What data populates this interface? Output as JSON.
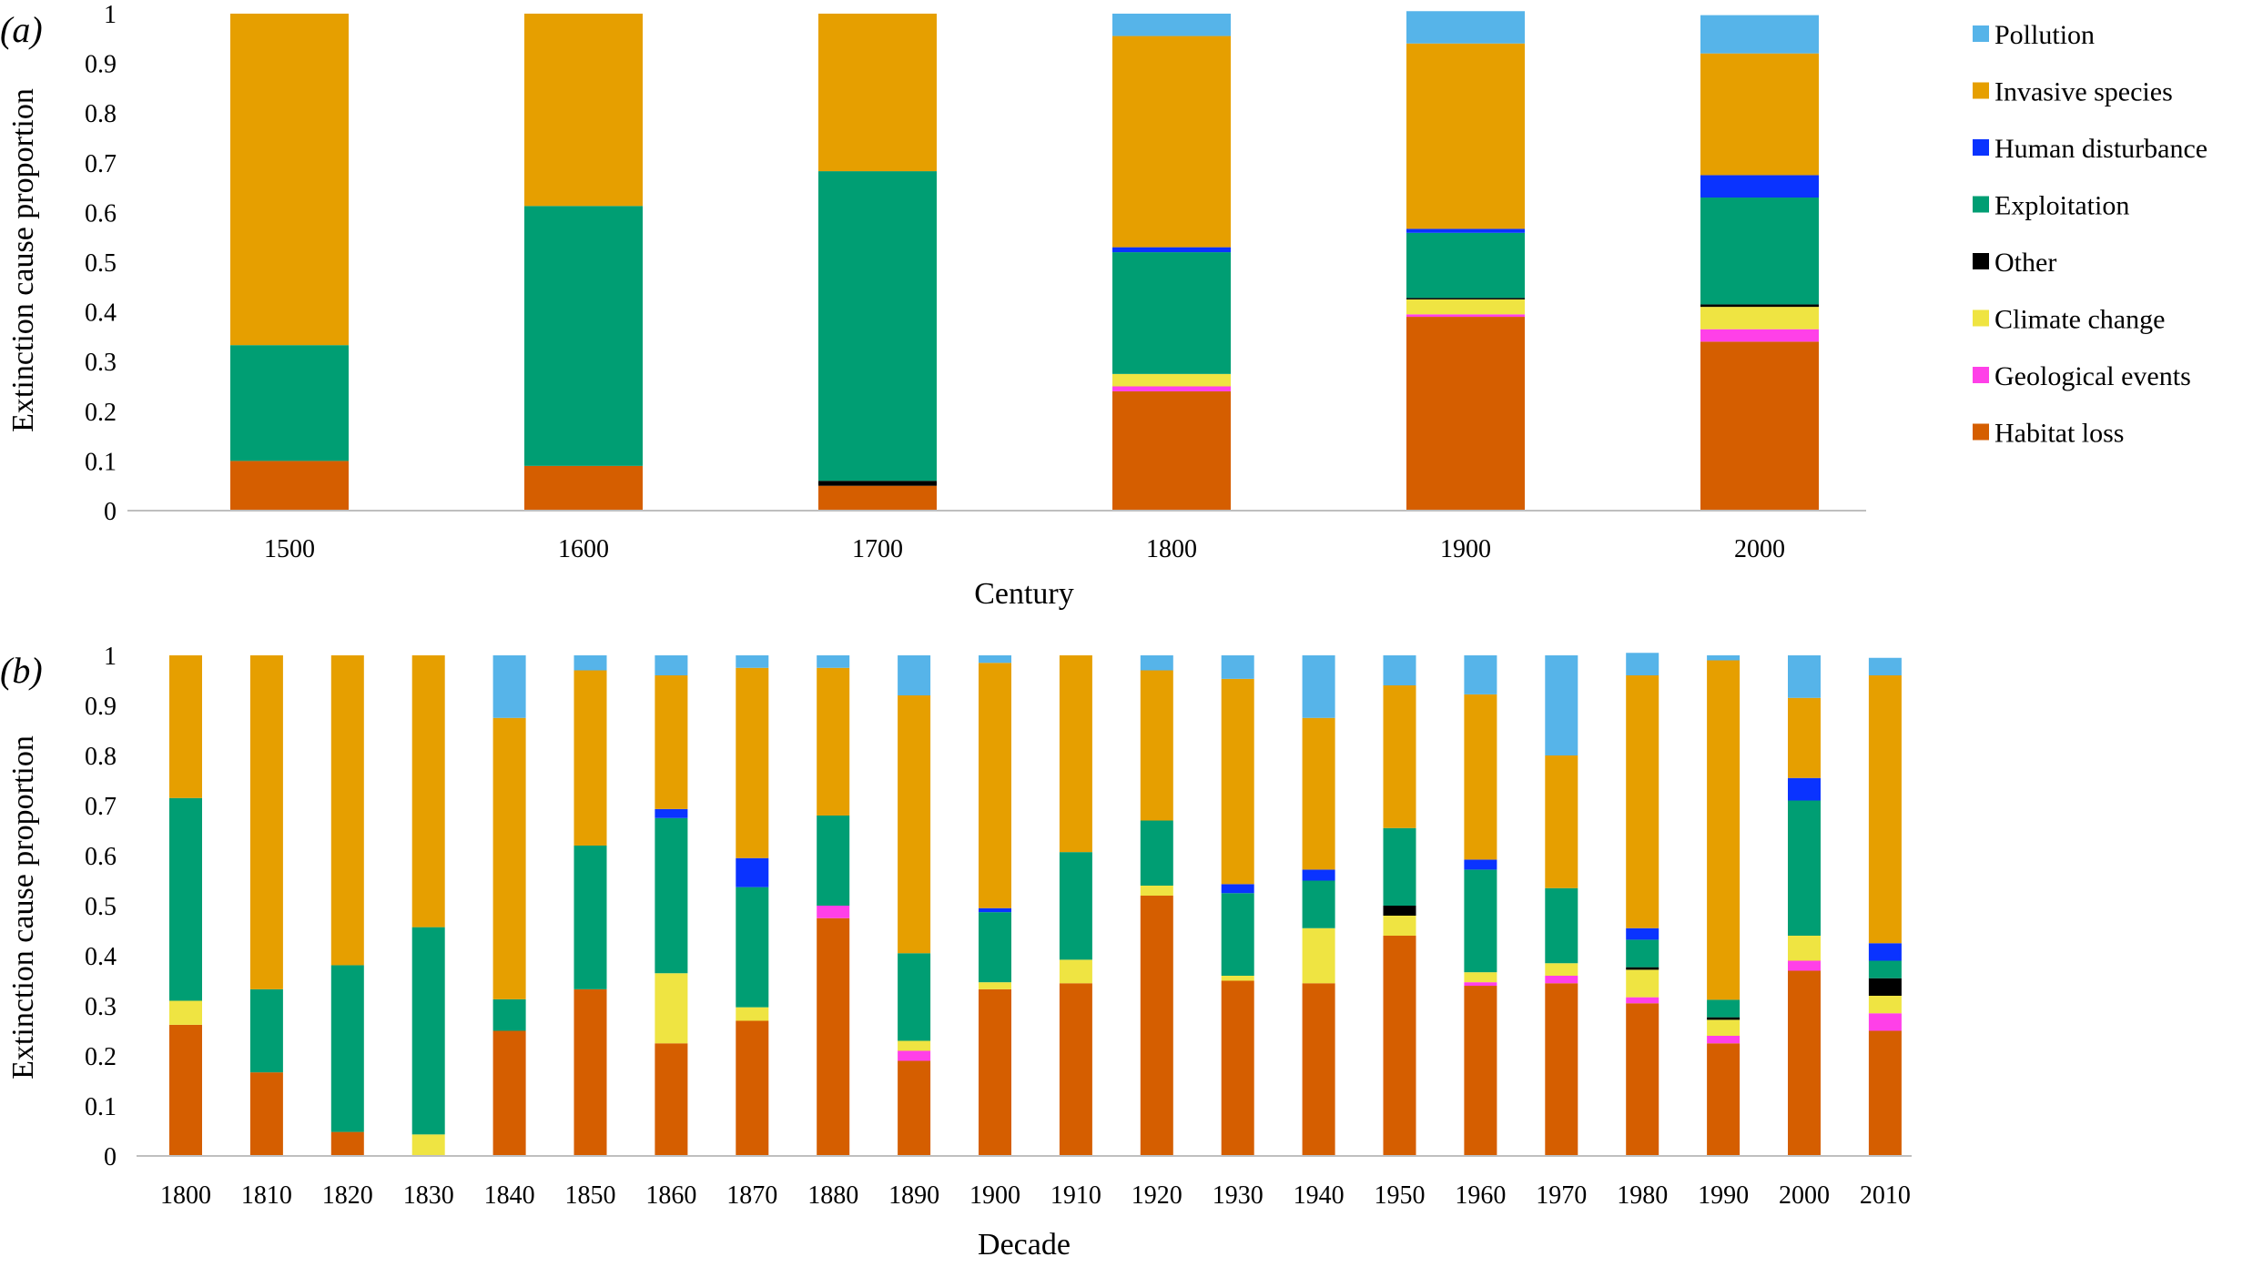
{
  "series": [
    {
      "key": "habitat",
      "name": "Habitat loss",
      "color": "#D55E00"
    },
    {
      "key": "geological",
      "name": "Geological events",
      "color": "#FF40E8"
    },
    {
      "key": "climate",
      "name": "Climate change",
      "color": "#EFE442"
    },
    {
      "key": "other",
      "name": "Other",
      "color": "#000000"
    },
    {
      "key": "exploitation",
      "name": "Exploitation",
      "color": "#009E73"
    },
    {
      "key": "human",
      "name": "Human disturbance",
      "color": "#0A33FF"
    },
    {
      "key": "invasive",
      "name": "Invasive species",
      "color": "#E69F00"
    },
    {
      "key": "pollution",
      "name": "Pollution",
      "color": "#56B4E9"
    }
  ],
  "chart_data": [
    {
      "type": "bar",
      "stacked": true,
      "panel_label": "(a)",
      "xlabel": "Century",
      "ylabel": "Extinction cause proportion",
      "ylim": [
        0,
        1
      ],
      "yticks": [
        "0",
        "0.1",
        "0.2",
        "0.3",
        "0.4",
        "0.5",
        "0.6",
        "0.7",
        "0.8",
        "0.9",
        "1"
      ],
      "legend_position": "right",
      "categories": [
        "1500",
        "1600",
        "1700",
        "1800",
        "1900",
        "2000"
      ],
      "series": [
        {
          "name": "Habitat loss",
          "values": [
            0.1,
            0.09,
            0.05,
            0.24,
            0.39,
            0.34
          ]
        },
        {
          "name": "Geological events",
          "values": [
            0,
            0,
            0,
            0.01,
            0.005,
            0.025
          ]
        },
        {
          "name": "Climate change",
          "values": [
            0,
            0,
            0,
            0.025,
            0.03,
            0.045
          ]
        },
        {
          "name": "Other",
          "values": [
            0,
            0,
            0.01,
            0,
            0.003,
            0.005
          ]
        },
        {
          "name": "Exploitation",
          "values": [
            0.233,
            0.523,
            0.623,
            0.245,
            0.131,
            0.215
          ]
        },
        {
          "name": "Human disturbance",
          "values": [
            0,
            0,
            0,
            0.01,
            0.008,
            0.045
          ]
        },
        {
          "name": "Invasive species",
          "values": [
            0.667,
            0.387,
            0.317,
            0.425,
            0.373,
            0.245
          ]
        },
        {
          "name": "Pollution",
          "values": [
            0,
            0,
            0,
            0.045,
            0.065,
            0.077
          ]
        }
      ]
    },
    {
      "type": "bar",
      "stacked": true,
      "panel_label": "(b)",
      "xlabel": "Decade",
      "ylabel": "Extinction cause proportion",
      "ylim": [
        0,
        1
      ],
      "yticks": [
        "0",
        "0.1",
        "0.2",
        "0.3",
        "0.4",
        "0.5",
        "0.6",
        "0.7",
        "0.8",
        "0.9",
        "1"
      ],
      "categories": [
        "1800",
        "1810",
        "1820",
        "1830",
        "1840",
        "1850",
        "1860",
        "1870",
        "1880",
        "1890",
        "1900",
        "1910",
        "1920",
        "1930",
        "1940",
        "1950",
        "1960",
        "1970",
        "1980",
        "1990",
        "2000",
        "2010"
      ],
      "series": [
        {
          "name": "Habitat loss",
          "values": [
            0.262,
            0.167,
            0.048,
            0,
            0.25,
            0.333,
            0.225,
            0.27,
            0.475,
            0.19,
            0.333,
            0.345,
            0.52,
            0.35,
            0.345,
            0.44,
            0.34,
            0.345,
            0.305,
            0.225,
            0.37,
            0.25
          ]
        },
        {
          "name": "Geological events",
          "values": [
            0,
            0,
            0,
            0,
            0,
            0,
            0,
            0,
            0.025,
            0.02,
            0,
            0,
            0,
            0,
            0,
            0,
            0.007,
            0.015,
            0.012,
            0.015,
            0.02,
            0.035
          ]
        },
        {
          "name": "Climate change",
          "values": [
            0.048,
            0,
            0,
            0.043,
            0,
            0,
            0.14,
            0.027,
            0,
            0.02,
            0.014,
            0.047,
            0.02,
            0.01,
            0.11,
            0.04,
            0.02,
            0.025,
            0.055,
            0.032,
            0.05,
            0.035
          ]
        },
        {
          "name": "Other",
          "values": [
            0,
            0,
            0,
            0,
            0,
            0,
            0,
            0,
            0,
            0,
            0,
            0,
            0,
            0,
            0,
            0.02,
            0,
            0,
            0.005,
            0.005,
            0,
            0.035
          ]
        },
        {
          "name": "Exploitation",
          "values": [
            0.405,
            0.166,
            0.333,
            0.414,
            0.063,
            0.287,
            0.31,
            0.24,
            0.18,
            0.175,
            0.14,
            0.215,
            0.13,
            0.165,
            0.095,
            0.155,
            0.205,
            0.15,
            0.055,
            0.035,
            0.27,
            0.035
          ]
        },
        {
          "name": "Human disturbance",
          "values": [
            0,
            0,
            0,
            0,
            0,
            0,
            0.018,
            0.058,
            0,
            0,
            0.008,
            0,
            0,
            0.018,
            0.022,
            0,
            0.02,
            0,
            0.023,
            0,
            0.045,
            0.035
          ]
        },
        {
          "name": "Invasive species",
          "values": [
            0.285,
            0.667,
            0.619,
            0.543,
            0.562,
            0.35,
            0.267,
            0.38,
            0.295,
            0.515,
            0.49,
            0.393,
            0.3,
            0.41,
            0.303,
            0.285,
            0.33,
            0.265,
            0.505,
            0.678,
            0.16,
            0.535
          ]
        },
        {
          "name": "Pollution",
          "values": [
            0,
            0,
            0,
            0,
            0.125,
            0.03,
            0.04,
            0.025,
            0.025,
            0.08,
            0.015,
            0,
            0.03,
            0.047,
            0.125,
            0.06,
            0.078,
            0.2,
            0.045,
            0.01,
            0.085,
            0.035
          ]
        }
      ]
    }
  ]
}
